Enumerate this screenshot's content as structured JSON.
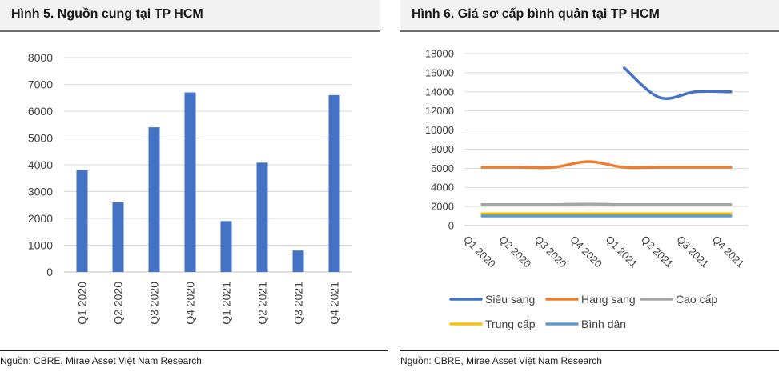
{
  "figures": [
    {
      "title": "Hình 5. Nguồn cung tại TP HCM",
      "source": "Nguồn: CBRE, Mirae Asset Việt Nam Research"
    },
    {
      "title": "Hình 6. Giá sơ cấp bình quân tại TP HCM",
      "source": "Nguồn: CBRE, Mirae Asset Việt Nam Research"
    }
  ],
  "chart_data": [
    {
      "type": "bar",
      "title": "Hình 5. Nguồn cung tại TP HCM",
      "categories": [
        "Q1 2020",
        "Q2 2020",
        "Q3 2020",
        "Q4 2020",
        "Q1 2021",
        "Q2 2021",
        "Q3 2021",
        "Q4 2021"
      ],
      "values": [
        3800,
        2600,
        5400,
        6700,
        1900,
        4080,
        800,
        6600
      ],
      "yticks": [
        "0",
        "1000",
        "2000",
        "3000",
        "4000",
        "5000",
        "6000",
        "7000",
        "8000"
      ],
      "ylim": [
        0,
        8000
      ],
      "grid": true,
      "bar_color": "#4472c4"
    },
    {
      "type": "line",
      "title": "Hình 6. Giá sơ cấp bình quân tại TP HCM",
      "categories": [
        "Q1 2020",
        "Q2 2020",
        "Q3 2020",
        "Q4 2020",
        "Q1 2021",
        "Q2 2021",
        "Q3 2021",
        "Q4 2021"
      ],
      "yticks": [
        "0",
        "2000",
        "4000",
        "6000",
        "8000",
        "10000",
        "12000",
        "14000",
        "16000",
        "18000"
      ],
      "ylim": [
        0,
        18000
      ],
      "grid": true,
      "legend_position": "bottom",
      "series": [
        {
          "name": "Siêu sang",
          "color": "#4472c4",
          "values": [
            null,
            null,
            null,
            null,
            16500,
            13400,
            14000,
            14000
          ]
        },
        {
          "name": "Hạng sang",
          "color": "#ed7d31",
          "values": [
            6100,
            6100,
            6100,
            6700,
            6100,
            6100,
            6100,
            6100
          ]
        },
        {
          "name": "Cao cấp",
          "color": "#a5a5a5",
          "values": [
            2200,
            2200,
            2200,
            2250,
            2200,
            2200,
            2200,
            2200
          ]
        },
        {
          "name": "Trung cấp",
          "color": "#ffc000",
          "values": [
            1250,
            1250,
            1250,
            1250,
            1250,
            1250,
            1250,
            1250
          ]
        },
        {
          "name": "Bình dân",
          "color": "#5b9bd5",
          "values": [
            1000,
            1000,
            1000,
            1000,
            1000,
            1000,
            1000,
            1000
          ]
        }
      ]
    }
  ]
}
